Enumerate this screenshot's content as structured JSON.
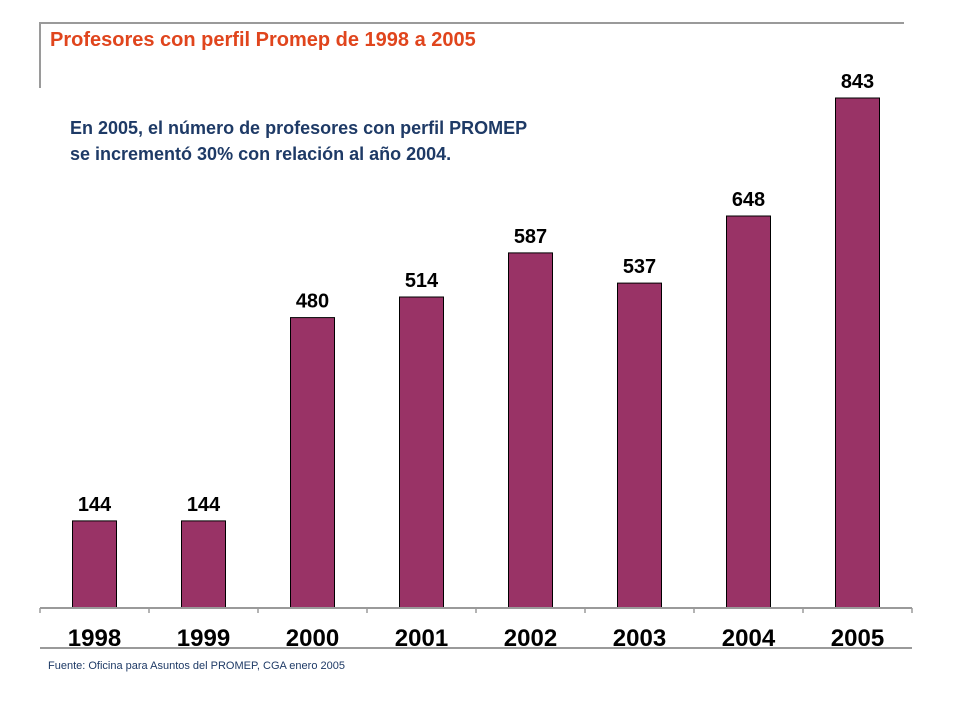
{
  "page": {
    "title": "Profesores con perfil Promep de 1998 a 2005",
    "annotation_line1": "En 2005, el número de profesores con perfil PROMEP",
    "annotation_line2": "se incrementó 30% con relación al año 2004.",
    "source": "Fuente: Oficina para Asuntos del PROMEP,  CGA enero 2005"
  },
  "colors": {
    "title": "#e0451d",
    "text": "#1e3a66",
    "bar": "#993366",
    "bar_outline": "#000000",
    "axis": "#9a9a9a"
  },
  "chart_data": {
    "type": "bar",
    "title": "Profesores con perfil Promep de 1998 a 2005",
    "categories": [
      "1998",
      "1999",
      "2000",
      "2001",
      "2002",
      "2003",
      "2004",
      "2005"
    ],
    "values": [
      144,
      144,
      480,
      514,
      587,
      537,
      648,
      843
    ],
    "data_labels": [
      "144",
      "144",
      "480",
      "514",
      "587",
      "537",
      "648",
      "843"
    ],
    "ylim": [
      0,
      843
    ],
    "grid": false,
    "legend": "none"
  }
}
